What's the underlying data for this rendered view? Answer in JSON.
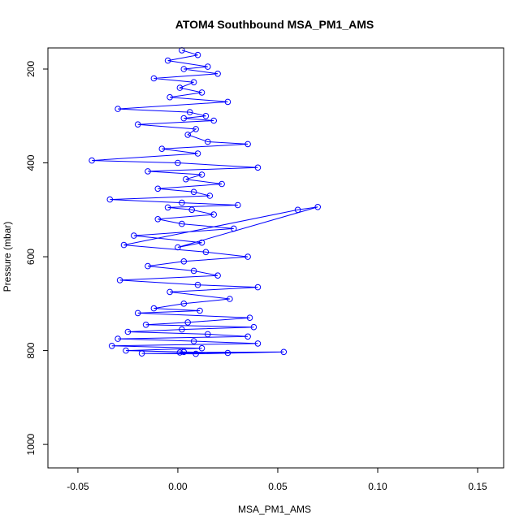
{
  "chart_data": {
    "type": "scatter",
    "title": "ATOM4 Southbound MSA_PM1_AMS",
    "xlabel": "MSA_PM1_AMS",
    "ylabel": "Pressure (mbar)",
    "xlim": [
      -0.065,
      0.163
    ],
    "ylim": [
      1050,
      155
    ],
    "y_reversed": true,
    "x_ticks": [
      -0.05,
      0.0,
      0.05,
      0.1,
      0.15
    ],
    "x_tick_labels": [
      "-0.05",
      "0.00",
      "0.05",
      "0.10",
      "0.15"
    ],
    "y_ticks": [
      200,
      400,
      600,
      800,
      1000
    ],
    "y_tick_labels": [
      "200",
      "400",
      "600",
      "800",
      "1000"
    ],
    "grid": false,
    "style": "points connected by lines (type o), open circles",
    "series_color": "#0000ff",
    "series": [
      {
        "x": [
          0.002,
          0.01,
          -0.005,
          0.015,
          0.003,
          0.02,
          -0.012,
          0.008,
          0.001,
          0.012,
          -0.004,
          0.025,
          -0.03,
          0.006,
          0.014,
          0.003,
          0.018,
          -0.02,
          0.009,
          0.005,
          0.015,
          0.035,
          -0.008,
          0.01,
          -0.043,
          0.0,
          0.04,
          -0.015,
          0.012,
          0.004,
          0.022,
          -0.01,
          0.008,
          0.016,
          -0.034,
          0.002,
          0.03,
          -0.005,
          0.007,
          0.018,
          -0.01,
          0.002,
          0.028,
          -0.022,
          0.012,
          0.0,
          0.07,
          0.06,
          -0.027,
          0.014,
          0.035,
          0.003,
          -0.015,
          0.008,
          0.02,
          -0.029,
          0.01,
          0.04,
          -0.004,
          0.026,
          0.003,
          -0.012,
          0.011,
          -0.02,
          0.036,
          0.005,
          -0.016,
          0.038,
          0.002,
          -0.025,
          0.015,
          0.035,
          -0.03,
          0.008,
          0.04,
          -0.033,
          0.012,
          -0.026,
          0.003,
          0.025,
          -0.018,
          0.009,
          0.053,
          0.001
        ],
        "y": [
          160,
          170,
          182,
          195,
          200,
          210,
          220,
          228,
          240,
          250,
          260,
          270,
          285,
          292,
          300,
          305,
          310,
          318,
          328,
          340,
          355,
          360,
          370,
          380,
          395,
          400,
          410,
          418,
          425,
          435,
          445,
          455,
          462,
          470,
          478,
          485,
          490,
          495,
          500,
          510,
          520,
          530,
          540,
          555,
          570,
          580,
          494,
          500,
          575,
          590,
          600,
          610,
          620,
          630,
          640,
          650,
          660,
          665,
          675,
          690,
          700,
          710,
          715,
          720,
          730,
          740,
          745,
          750,
          755,
          760,
          765,
          770,
          775,
          780,
          785,
          790,
          795,
          800,
          803,
          805,
          806,
          807,
          803,
          804
        ]
      }
    ]
  }
}
